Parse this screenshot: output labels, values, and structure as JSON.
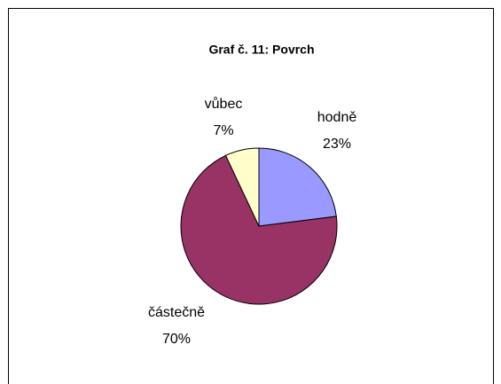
{
  "chart_data": {
    "type": "pie",
    "title": "Graf č. 11: Povrch",
    "categories": [
      "hodně",
      "částečně",
      "vůbec"
    ],
    "values": [
      23,
      70,
      7
    ],
    "value_labels": [
      "23%",
      "70%",
      "7%"
    ],
    "colors": [
      "#9999FF",
      "#993366",
      "#FFFFCC"
    ]
  }
}
